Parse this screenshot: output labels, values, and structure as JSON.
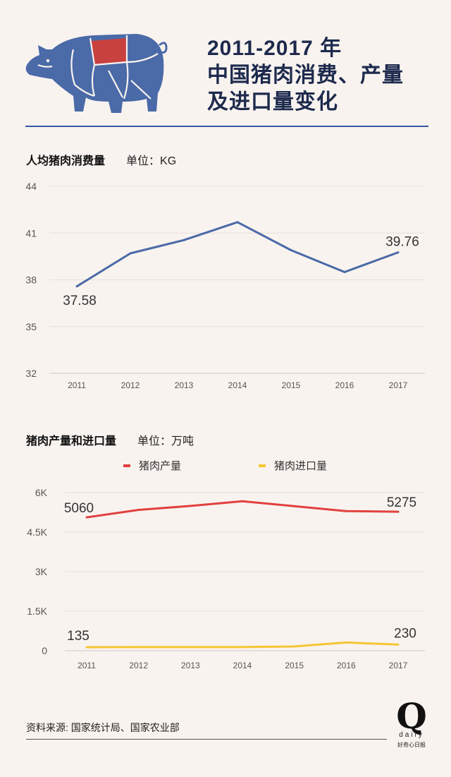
{
  "header": {
    "title_lines": [
      "2011-2017 年",
      "中国猪肉消费、产量",
      "及进口量变化"
    ],
    "pig_colors": {
      "body": "#4a6aa8",
      "highlight": "#c9413f",
      "lines": "#f9f3ef"
    }
  },
  "section1": {
    "title": "人均猪肉消费量",
    "unit": "单位：KG"
  },
  "section2": {
    "title": "猪肉产量和进口量",
    "unit": "单位：万吨"
  },
  "chart_data": [
    {
      "type": "line",
      "x": [
        "2011",
        "2012",
        "2013",
        "2014",
        "2015",
        "2016",
        "2017"
      ],
      "series": [
        {
          "values": [
            37.58,
            39.7,
            40.55,
            41.7,
            39.9,
            38.5,
            39.76
          ],
          "color": "#4a6aa8"
        }
      ],
      "ylim": [
        32,
        44
      ],
      "yticks": [
        "32",
        "35",
        "38",
        "41",
        "44"
      ],
      "data_labels": [
        {
          "index": 0,
          "text": "37.58"
        },
        {
          "index": 6,
          "text": "39.76"
        }
      ],
      "grid": true
    },
    {
      "type": "line",
      "x": [
        "2011",
        "2012",
        "2013",
        "2014",
        "2015",
        "2016",
        "2017"
      ],
      "series": [
        {
          "name": "猪肉产量",
          "values": [
            5060,
            5343,
            5493,
            5671,
            5487,
            5299,
            5275
          ],
          "color": "#e0413f"
        },
        {
          "name": "猪肉进口量",
          "values": [
            135,
            136,
            136,
            136,
            160,
            310,
            230
          ],
          "color": "#f5c533"
        }
      ],
      "ylim": [
        0,
        6000
      ],
      "yticks": [
        "0",
        "1.5K",
        "3K",
        "4.5K",
        "6K"
      ],
      "data_labels": [
        {
          "series": 0,
          "index": 0,
          "text": "5060"
        },
        {
          "series": 0,
          "index": 6,
          "text": "5275"
        },
        {
          "series": 1,
          "index": 0,
          "text": "135"
        },
        {
          "series": 1,
          "index": 6,
          "text": "230"
        }
      ],
      "legend": "top",
      "grid": true
    }
  ],
  "footer": {
    "source": "资料来源: 国家统计局、国家农业部",
    "logo_mark": "Q",
    "logo_word": "daily",
    "logo_cn": "好奇心日报"
  }
}
